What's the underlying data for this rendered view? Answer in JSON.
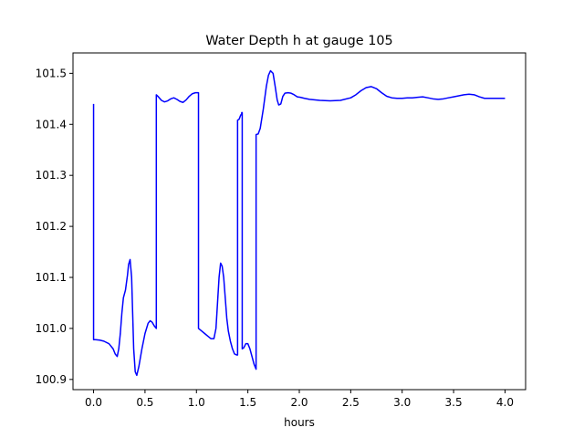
{
  "chart_data": {
    "type": "line",
    "title": "Water Depth h at gauge 105",
    "xlabel": "hours",
    "ylabel": "",
    "xlim": [
      -0.2,
      4.2
    ],
    "ylim": [
      100.88,
      101.54
    ],
    "xticks": [
      0.0,
      0.5,
      1.0,
      1.5,
      2.0,
      2.5,
      3.0,
      3.5,
      4.0
    ],
    "xtick_labels": [
      "0.0",
      "0.5",
      "1.0",
      "1.5",
      "2.0",
      "2.5",
      "3.0",
      "3.5",
      "4.0"
    ],
    "yticks": [
      100.9,
      101.0,
      101.1,
      101.2,
      101.3,
      101.4,
      101.5
    ],
    "ytick_labels": [
      "100.9",
      "101.0",
      "101.1",
      "101.2",
      "101.3",
      "101.4",
      "101.5"
    ],
    "grid": false,
    "series": [
      {
        "color": "#0000ff",
        "x": [
          0.0,
          0.0,
          0.02,
          0.06,
          0.1,
          0.15,
          0.19,
          0.21,
          0.23,
          0.245,
          0.26,
          0.275,
          0.29,
          0.31,
          0.33,
          0.34,
          0.355,
          0.37,
          0.38,
          0.39,
          0.405,
          0.42,
          0.44,
          0.47,
          0.5,
          0.53,
          0.55,
          0.57,
          0.59,
          0.61,
          0.61,
          0.63,
          0.66,
          0.69,
          0.72,
          0.75,
          0.78,
          0.81,
          0.84,
          0.87,
          0.9,
          0.93,
          0.96,
          0.99,
          1.02,
          1.02,
          1.05,
          1.08,
          1.11,
          1.14,
          1.17,
          1.19,
          1.205,
          1.22,
          1.235,
          1.25,
          1.265,
          1.28,
          1.295,
          1.31,
          1.33,
          1.35,
          1.37,
          1.39,
          1.4,
          1.4,
          1.415,
          1.43,
          1.44,
          1.44,
          1.445,
          1.445,
          1.46,
          1.48,
          1.5,
          1.52,
          1.54,
          1.56,
          1.58,
          1.58,
          1.6,
          1.62,
          1.65,
          1.68,
          1.7,
          1.72,
          1.745,
          1.765,
          1.785,
          1.8,
          1.82,
          1.84,
          1.86,
          1.89,
          1.92,
          1.95,
          1.98,
          2.01,
          2.05,
          2.1,
          2.2,
          2.3,
          2.4,
          2.5,
          2.55,
          2.6,
          2.65,
          2.7,
          2.75,
          2.8,
          2.85,
          2.9,
          2.95,
          3.0,
          3.05,
          3.1,
          3.15,
          3.2,
          3.25,
          3.3,
          3.35,
          3.4,
          3.45,
          3.5,
          3.55,
          3.6,
          3.65,
          3.7,
          3.75,
          3.8,
          3.9,
          4.0
        ],
        "y": [
          101.44,
          100.978,
          100.978,
          100.977,
          100.975,
          100.97,
          100.96,
          100.95,
          100.945,
          100.96,
          100.99,
          101.03,
          101.06,
          101.075,
          101.105,
          101.125,
          101.135,
          101.1,
          101.03,
          100.96,
          100.915,
          100.908,
          100.925,
          100.96,
          100.99,
          101.01,
          101.015,
          101.012,
          101.005,
          101.0,
          101.458,
          101.454,
          101.447,
          101.444,
          101.446,
          101.45,
          101.452,
          101.449,
          101.445,
          101.443,
          101.448,
          101.455,
          101.46,
          101.462,
          101.462,
          101.0,
          100.995,
          100.99,
          100.985,
          100.98,
          100.98,
          101.0,
          101.05,
          101.1,
          101.128,
          101.122,
          101.1,
          101.06,
          101.02,
          100.995,
          100.975,
          100.96,
          100.95,
          100.948,
          100.948,
          101.408,
          101.41,
          101.418,
          101.42,
          101.423,
          101.423,
          100.96,
          100.962,
          100.97,
          100.97,
          100.96,
          100.945,
          100.93,
          100.92,
          101.38,
          101.381,
          101.392,
          101.43,
          101.475,
          101.496,
          101.505,
          101.5,
          101.475,
          101.448,
          101.438,
          101.44,
          101.455,
          101.461,
          101.462,
          101.461,
          101.458,
          101.454,
          101.453,
          101.451,
          101.449,
          101.447,
          101.446,
          101.447,
          101.452,
          101.458,
          101.466,
          101.472,
          101.474,
          101.47,
          101.462,
          101.455,
          101.452,
          101.451,
          101.451,
          101.452,
          101.452,
          101.453,
          101.454,
          101.452,
          101.45,
          101.449,
          101.45,
          101.452,
          101.454,
          101.456,
          101.458,
          101.459,
          101.458,
          101.454,
          101.451,
          101.451,
          101.451
        ]
      }
    ]
  }
}
